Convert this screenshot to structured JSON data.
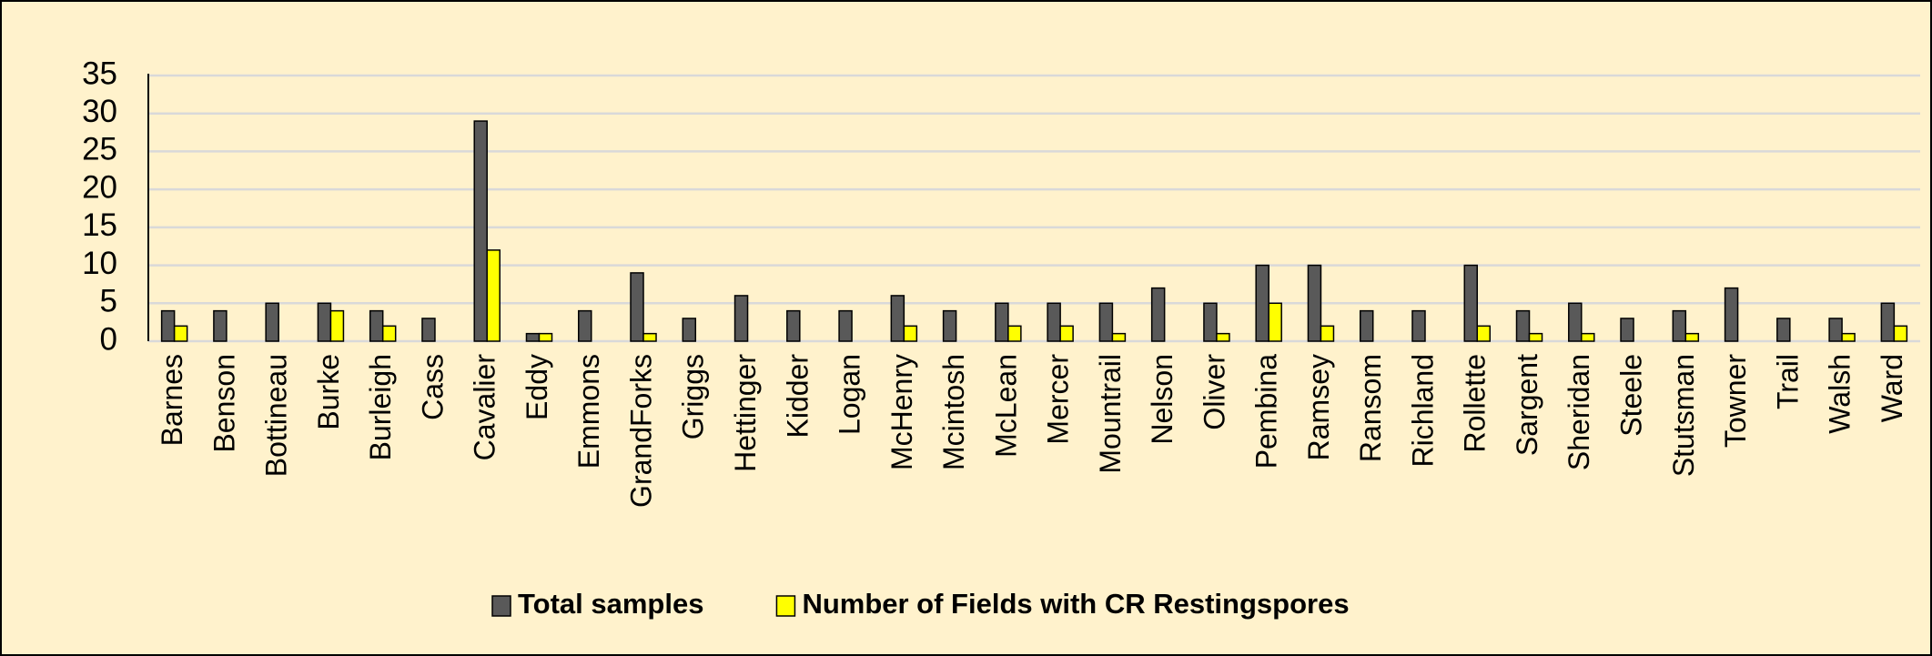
{
  "chart_data": {
    "type": "bar",
    "categories": [
      "Barnes",
      "Benson",
      "Bottineau",
      "Burke",
      "Burleigh",
      "Cass",
      "Cavalier",
      "Eddy",
      "Emmons",
      "GrandForks",
      "Griggs",
      "Hettinger",
      "Kidder",
      "Logan",
      "McHenry",
      "Mcintosh",
      "McLean",
      "Mercer",
      "Mountrail",
      "Nelson",
      "Oliver",
      "Pembina",
      "Ramsey",
      "Ransom",
      "Richland",
      "Rollette",
      "Sargent",
      "Sheridan",
      "Steele",
      "Stutsman",
      "Towner",
      "Trail",
      "Walsh",
      "Ward"
    ],
    "series": [
      {
        "name": "Total samples",
        "color": "#595959",
        "values": [
          4,
          4,
          5,
          5,
          4,
          3,
          29,
          1,
          4,
          9,
          3,
          6,
          4,
          4,
          6,
          4,
          5,
          5,
          5,
          7,
          5,
          10,
          10,
          4,
          4,
          10,
          4,
          5,
          3,
          4,
          7,
          3,
          3,
          5
        ]
      },
      {
        "name": "Number of Fields with CR Restingspores",
        "color": "#ffff00",
        "values": [
          2,
          0,
          0,
          4,
          2,
          0,
          12,
          1,
          0,
          1,
          0,
          0,
          0,
          0,
          2,
          0,
          2,
          2,
          1,
          0,
          1,
          5,
          2,
          0,
          0,
          2,
          1,
          1,
          0,
          1,
          0,
          0,
          1,
          2
        ]
      }
    ],
    "ylim": [
      0,
      35
    ],
    "yticks": [
      0,
      5,
      10,
      15,
      20,
      25,
      30,
      35
    ],
    "grid": true
  }
}
